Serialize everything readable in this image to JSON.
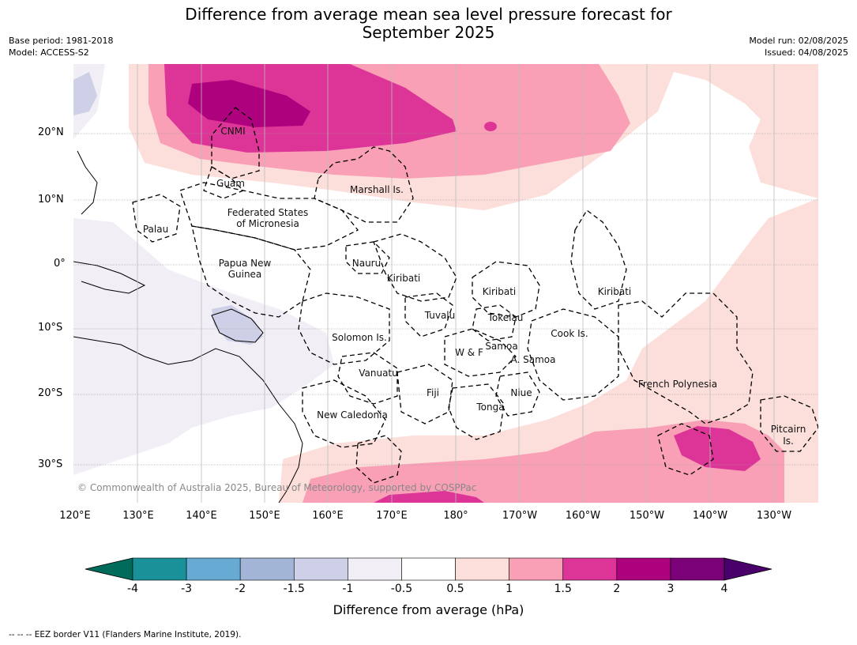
{
  "title_line1": "Difference from average mean sea level pressure forecast for",
  "title_line2": "September 2025",
  "meta_left": {
    "base_period": "Base period: 1981-2018",
    "model": "Model: ACCESS-S2"
  },
  "meta_right": {
    "model_run": "Model run: 02/08/2025",
    "issued": "Issued: 04/08/2025"
  },
  "lat_labels": [
    "20°N",
    "10°N",
    "0°",
    "10°S",
    "20°S",
    "30°S"
  ],
  "lon_labels": [
    "120°E",
    "130°E",
    "140°E",
    "150°E",
    "160°E",
    "170°E",
    "180°",
    "170°W",
    "160°W",
    "150°W",
    "140°W",
    "130°W"
  ],
  "places": [
    "CNMI",
    "Guam",
    "Marshall Is.",
    "Federated States",
    "of Micronesia",
    "Palau",
    "Nauru",
    "Papua New",
    "Guinea",
    "Kiribati",
    "Kiribati",
    "Kiribati",
    "Tuvalu",
    "Tokelau",
    "Solomon Is.",
    "Samoa",
    "W & F",
    "A. Samoa",
    "Cook Is.",
    "Vanuatu",
    "Fiji",
    "Niue",
    "French Polynesia",
    "Tonga",
    "New Caledonia",
    "Pitcairn",
    "Is."
  ],
  "copyright": "© Commonwealth of Australia 2025, Bureau of Meteorology, supported by COSPPac",
  "colorbar": {
    "ticks": [
      "-4",
      "-3",
      "-2",
      "-1.5",
      "-1",
      "-0.5",
      "0.5",
      "1",
      "1.5",
      "2",
      "3",
      "4"
    ],
    "colors": [
      "#006b5b",
      "#1a9199",
      "#67aad4",
      "#a3b5d6",
      "#cdd0e6",
      "#f1eef5",
      "#ffffff",
      "#fcdfdb",
      "#f9a0b7",
      "#dd3597",
      "#ae017e",
      "#7a0177",
      "#49006a"
    ],
    "label": "Difference from average (hPa)"
  },
  "footer": "--  --  -- EEZ border V11 (Flanders Marine Institute, 2019)."
}
